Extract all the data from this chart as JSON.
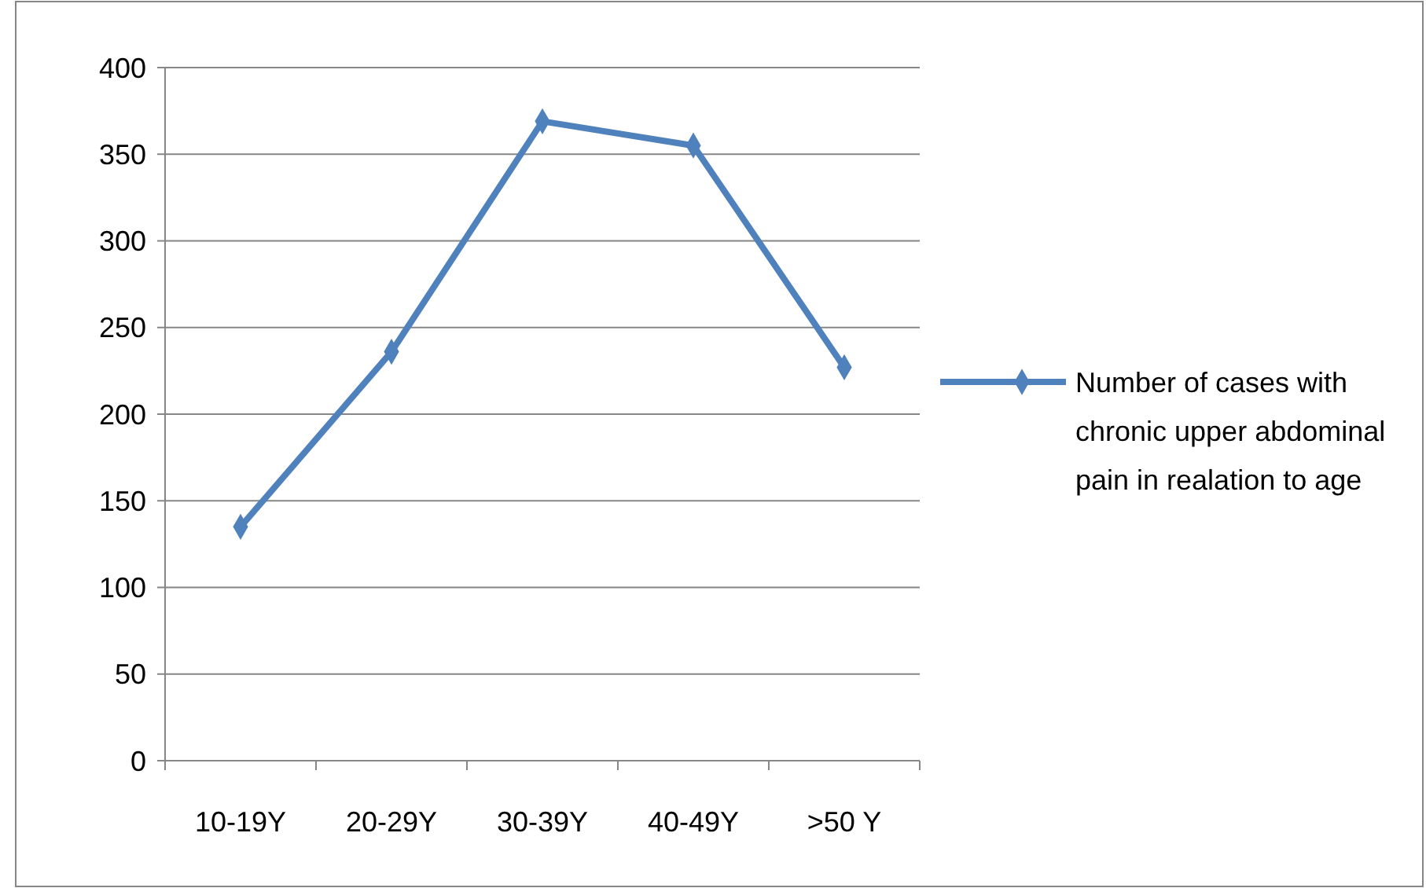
{
  "chart_data": {
    "type": "line",
    "categories": [
      "10-19Y",
      "20-29Y",
      "30-39Y",
      "40-49Y",
      ">50 Y"
    ],
    "series": [
      {
        "name": "Number of cases with chronic upper abdominal pain in realation to age",
        "color": "#4f81bd",
        "values": [
          135,
          236,
          369,
          355,
          227
        ]
      }
    ],
    "ylim": [
      0,
      400
    ],
    "yticks": [
      0,
      50,
      100,
      150,
      200,
      250,
      300,
      350,
      400
    ],
    "grid": "y",
    "legend": "right",
    "marker": "diamond",
    "line_style": "solid"
  }
}
